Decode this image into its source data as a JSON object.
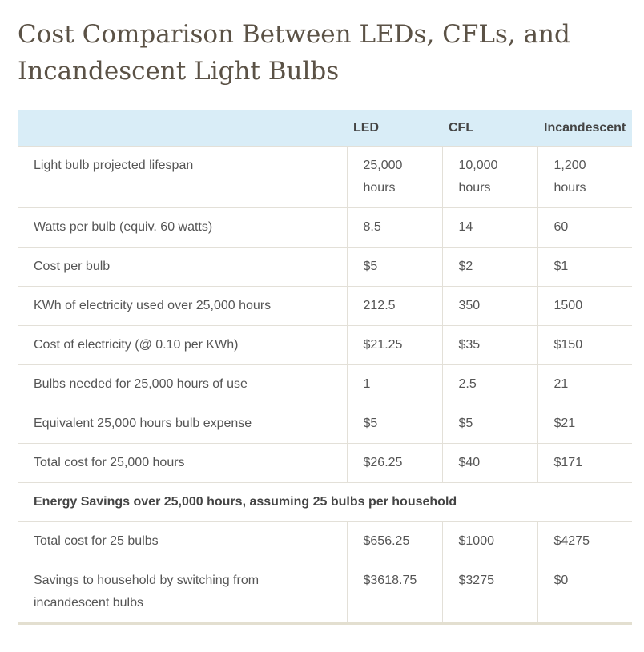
{
  "header": {
    "title": "Cost Comparison Between LEDs, CFLs, and Incandescent Light Bulbs"
  },
  "table": {
    "columns": [
      "LED",
      "CFL",
      "Incandescent"
    ],
    "rows": [
      [
        "Light bulb projected lifespan",
        "25,000 hours",
        "10,000 hours",
        "1,200 hours"
      ],
      [
        "Watts per bulb (equiv. 60 watts)",
        "8.5",
        "14",
        "60"
      ],
      [
        "Cost per bulb",
        "$5",
        "$2",
        "$1"
      ],
      [
        "KWh of electricity used over 25,000 hours",
        "212.5",
        "350",
        "1500"
      ],
      [
        "Cost of electricity (@ 0.10 per KWh)",
        "$21.25",
        "$35",
        "$150"
      ],
      [
        "Bulbs needed for 25,000 hours of use",
        "1",
        "2.5",
        "21"
      ],
      [
        "Equivalent 25,000 hours bulb expense",
        "$5",
        "$5",
        "$21"
      ],
      [
        "Total cost for 25,000 hours",
        "$26.25",
        "$40",
        "$171"
      ]
    ],
    "section": "Energy Savings over 25,000 hours, assuming 25 bulbs per household",
    "section_rows": [
      [
        "Total cost for 25 bulbs",
        "$656.25",
        "$1000",
        "$4275"
      ],
      [
        "Savings to household by switching from incandescent bulbs",
        "$3618.75",
        "$3275",
        "$0"
      ]
    ]
  }
}
